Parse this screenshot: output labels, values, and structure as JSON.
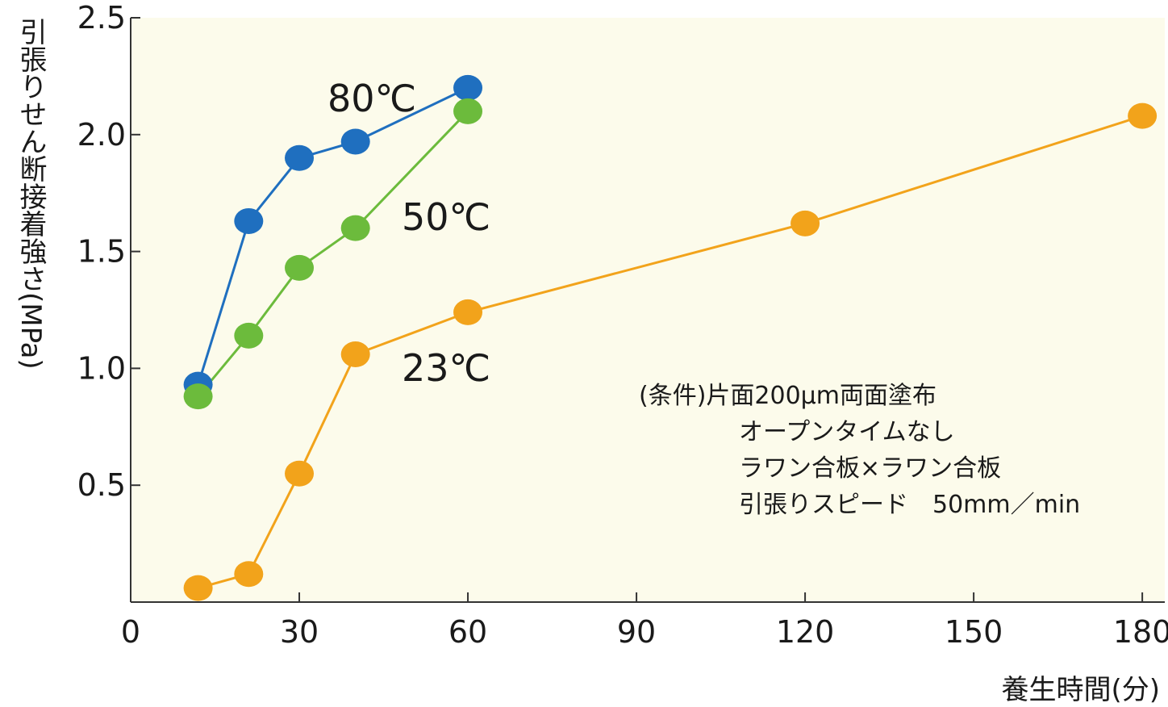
{
  "chart_data": {
    "type": "line",
    "xlabel": "養生時間(分)",
    "ylabel": "引張りせん断接着強さ(MPa)",
    "xlim": [
      0,
      184
    ],
    "ylim": [
      0,
      2.5
    ],
    "xticks": [
      "0",
      "30",
      "60",
      "90",
      "120",
      "150",
      "180"
    ],
    "yticks": [
      "0.5",
      "1.0",
      "1.5",
      "2.0",
      "2.5"
    ],
    "grid": false,
    "plot_background": "#fcfbeb",
    "series": [
      {
        "name": "80℃",
        "color": "#1f6fbf",
        "x": [
          12,
          21,
          30,
          40,
          60
        ],
        "y": [
          0.93,
          1.63,
          1.9,
          1.97,
          2.2
        ]
      },
      {
        "name": "50℃",
        "color": "#6cbb3c",
        "x": [
          12,
          21,
          30,
          40,
          60
        ],
        "y": [
          0.88,
          1.14,
          1.43,
          1.6,
          2.1
        ]
      },
      {
        "name": "23℃",
        "color": "#f2a31b",
        "x": [
          12,
          21,
          30,
          40,
          60,
          120,
          180
        ],
        "y": [
          0.06,
          0.12,
          0.55,
          1.06,
          1.24,
          1.62,
          2.08
        ]
      }
    ],
    "annotations": [
      "(条件)片面200μm両面塗布",
      "オープンタイムなし",
      "ラワン合板×ラワン合板",
      "引張りスピード　50mm／min"
    ]
  }
}
